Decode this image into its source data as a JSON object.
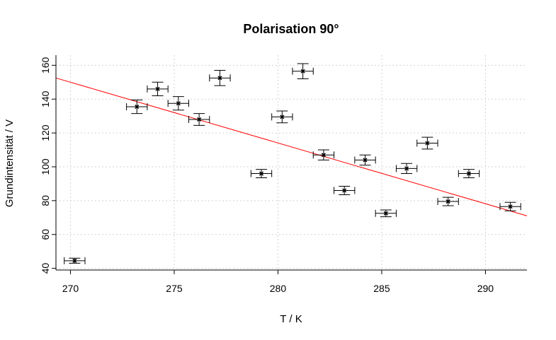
{
  "chart_data": {
    "type": "scatter",
    "title": "Polarisation 90°",
    "xlabel": "T / K",
    "ylabel": "Grundintensität / V",
    "xlim": [
      269.3,
      292.0
    ],
    "ylim": [
      39.0,
      166.0
    ],
    "x_ticks": [
      "270",
      "275",
      "280",
      "285",
      "290"
    ],
    "y_ticks": [
      "40",
      "60",
      "80",
      "100",
      "120",
      "140",
      "160"
    ],
    "grid": true,
    "points": [
      {
        "x": 270.2,
        "y": 44.5,
        "xerr": 0.5,
        "yerr": 1.5
      },
      {
        "x": 273.2,
        "y": 135.5,
        "xerr": 0.5,
        "yerr": 4.0
      },
      {
        "x": 274.2,
        "y": 146.0,
        "xerr": 0.5,
        "yerr": 4.0
      },
      {
        "x": 275.2,
        "y": 137.5,
        "xerr": 0.5,
        "yerr": 4.0
      },
      {
        "x": 276.2,
        "y": 128.0,
        "xerr": 0.5,
        "yerr": 3.5
      },
      {
        "x": 277.2,
        "y": 152.5,
        "xerr": 0.5,
        "yerr": 4.5
      },
      {
        "x": 279.2,
        "y": 96.0,
        "xerr": 0.5,
        "yerr": 2.5
      },
      {
        "x": 280.2,
        "y": 129.5,
        "xerr": 0.5,
        "yerr": 3.5
      },
      {
        "x": 281.2,
        "y": 156.5,
        "xerr": 0.5,
        "yerr": 4.5
      },
      {
        "x": 282.2,
        "y": 107.0,
        "xerr": 0.5,
        "yerr": 3.0
      },
      {
        "x": 283.2,
        "y": 86.0,
        "xerr": 0.5,
        "yerr": 2.5
      },
      {
        "x": 284.2,
        "y": 104.0,
        "xerr": 0.5,
        "yerr": 3.0
      },
      {
        "x": 285.2,
        "y": 72.5,
        "xerr": 0.5,
        "yerr": 2.0
      },
      {
        "x": 286.2,
        "y": 99.0,
        "xerr": 0.5,
        "yerr": 3.0
      },
      {
        "x": 287.2,
        "y": 114.0,
        "xerr": 0.5,
        "yerr": 3.5
      },
      {
        "x": 288.2,
        "y": 79.5,
        "xerr": 0.5,
        "yerr": 2.5
      },
      {
        "x": 289.2,
        "y": 96.0,
        "xerr": 0.5,
        "yerr": 2.5
      },
      {
        "x": 291.2,
        "y": 76.5,
        "xerr": 0.5,
        "yerr": 2.5
      }
    ],
    "fit_line": {
      "x": [
        269.3,
        292.0
      ],
      "y": [
        152.5,
        71.0
      ],
      "color": "#ff0000"
    },
    "colors": {
      "points": "#000000",
      "fit": "#ff0000",
      "grid": "#d3d3d3"
    }
  }
}
